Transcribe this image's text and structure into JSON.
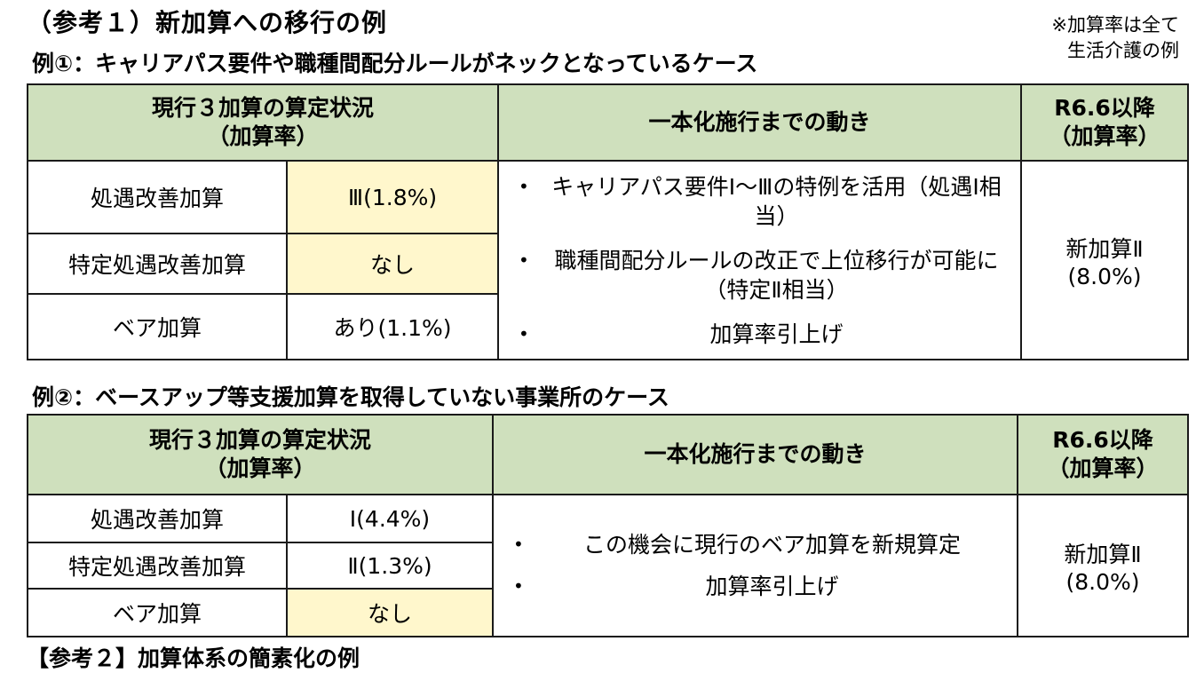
{
  "page_title": "（参考１）新加算への移行の例",
  "note": {
    "line1": "※加算率は全て",
    "line2": "生活介護の例"
  },
  "headers": {
    "current_line1": "現行３加算の算定状況",
    "current_line2": "（加算率）",
    "moves": "一本化施行までの動き",
    "after_line1": "R6.6以降",
    "after_line2": "（加算率）"
  },
  "example1": {
    "title": "例①：キャリアパス要件や職種間配分ルールがネックとなっているケース",
    "rows": [
      {
        "label": "処遇改善加算",
        "value": "Ⅲ(1.8%)"
      },
      {
        "label": "特定処遇改善加算",
        "value": "なし"
      },
      {
        "label": "ベア加算",
        "value": "あり(1.1%)"
      }
    ],
    "moves": [
      "キャリアパス要件Ⅰ～Ⅲの特例を活用（処遇Ⅰ相当）",
      "職種間配分ルールの改正で上位移行が可能に（特定Ⅱ相当）",
      "加算率引上げ"
    ],
    "result_line1": "新加算Ⅱ",
    "result_line2": "(8.0%)"
  },
  "example2": {
    "title": "例②：ベースアップ等支援加算を取得していない事業所のケース",
    "rows": [
      {
        "label": "処遇改善加算",
        "value": "Ⅰ(4.4%)"
      },
      {
        "label": "特定処遇改善加算",
        "value": "Ⅱ(1.3%)"
      },
      {
        "label": "ベア加算",
        "value": "なし"
      }
    ],
    "moves": [
      "この機会に現行のベア加算を新規算定",
      "加算率引上げ"
    ],
    "result_line1": "新加算Ⅱ",
    "result_line2": "(8.0%)"
  },
  "colors": {
    "header_bg": "#cfe0bd",
    "highlight_bg": "#fff7cc",
    "border": "#1a1a1a"
  },
  "next_section_cutoff": "【参考２】加算体系の簡素化の例"
}
